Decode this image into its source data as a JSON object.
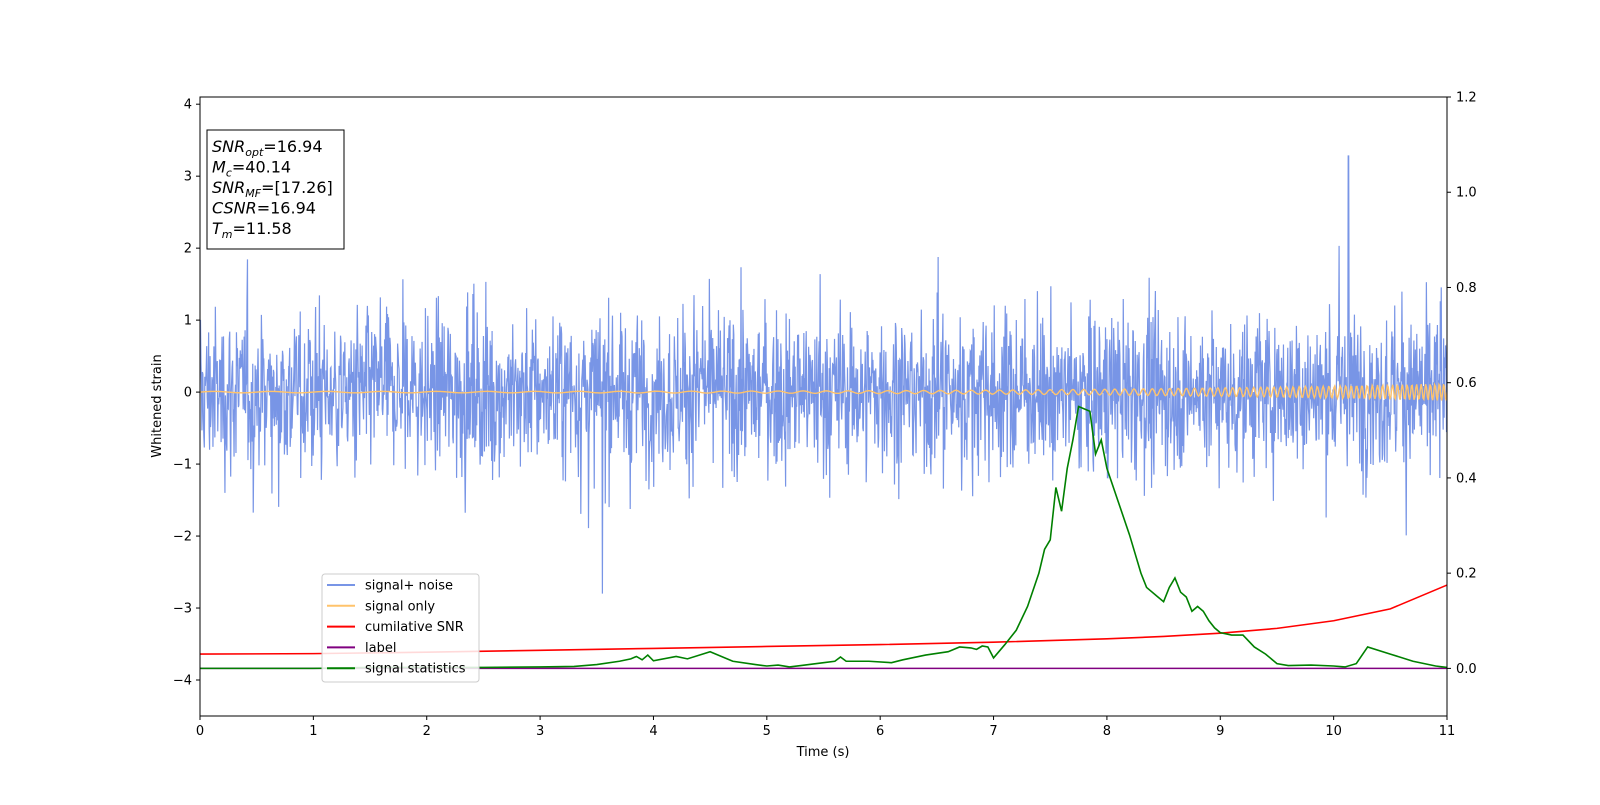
{
  "chart_data": {
    "type": "line",
    "xlabel": "Time (s)",
    "ylabel": "Whitened strain",
    "xlim": [
      0,
      11
    ],
    "ylim": [
      -4.5,
      4.1
    ],
    "y2lim": [
      -0.1,
      1.2
    ],
    "x_ticks": [
      0,
      1,
      2,
      3,
      4,
      5,
      6,
      7,
      8,
      9,
      10,
      11
    ],
    "x_tick_labels": [
      "0",
      "1",
      "2",
      "3",
      "4",
      "5",
      "6",
      "7",
      "8",
      "9",
      "10",
      "11"
    ],
    "y_ticks": [
      -4,
      -3,
      -2,
      -1,
      0,
      1,
      2,
      3,
      4
    ],
    "y_tick_labels": [
      "−4",
      "−3",
      "−2",
      "−1",
      "0",
      "1",
      "2",
      "3",
      "4"
    ],
    "y2_ticks": [
      0.0,
      0.2,
      0.4,
      0.6,
      0.8,
      1.0,
      1.2
    ],
    "y2_tick_labels": [
      "0.0",
      "0.2",
      "0.4",
      "0.6",
      "0.8",
      "1.0",
      "1.2"
    ],
    "grid": false,
    "legend_position": "lower-left",
    "info_box": [
      {
        "base": "SNR",
        "sub": "opt",
        "value": "=16.94"
      },
      {
        "base": "M",
        "sub": "c",
        "value": "=40.14"
      },
      {
        "base": "SNR",
        "sub": "MF",
        "value": "=[17.26]"
      },
      {
        "base": "CSNR",
        "sub": "",
        "value": "=16.94"
      },
      {
        "base": "T",
        "sub": "m",
        "value": "=11.58"
      }
    ],
    "series": [
      {
        "name": "signal+ noise",
        "color": "#7895e6",
        "axis": "left",
        "kind": "noise",
        "amplitude_std": 0.55,
        "typical_max": 2.0,
        "max_peak": [
          10.13,
          3.28
        ],
        "min_peak": [
          3.55,
          -2.8
        ]
      },
      {
        "name": "signal only",
        "color": "#ffc36b",
        "axis": "left",
        "kind": "chirp",
        "amplitude_start": 0.01,
        "amplitude_end": 0.12
      },
      {
        "name": "cumilative SNR",
        "color": "#ff0000",
        "axis": "right",
        "x": [
          0,
          1,
          2,
          3,
          4,
          5,
          6,
          7,
          8,
          8.5,
          9,
          9.5,
          10,
          10.5,
          11
        ],
        "values": [
          0.03,
          0.031,
          0.034,
          0.038,
          0.042,
          0.046,
          0.05,
          0.055,
          0.062,
          0.067,
          0.074,
          0.084,
          0.1,
          0.125,
          0.175
        ]
      },
      {
        "name": "label",
        "color": "#800080",
        "axis": "right",
        "x": [
          0,
          11
        ],
        "values": [
          0.0,
          0.0
        ]
      },
      {
        "name": "signal statistics",
        "color": "#008000",
        "axis": "right",
        "x": [
          0,
          0.5,
          1,
          1.5,
          2,
          2.5,
          3,
          3.3,
          3.5,
          3.7,
          3.8,
          3.85,
          3.9,
          3.95,
          4,
          4.2,
          4.3,
          4.5,
          4.7,
          4.9,
          5,
          5.1,
          5.2,
          5.3,
          5.5,
          5.6,
          5.65,
          5.7,
          5.9,
          6.1,
          6.2,
          6.4,
          6.6,
          6.7,
          6.8,
          6.85,
          6.9,
          6.95,
          7,
          7.1,
          7.2,
          7.3,
          7.4,
          7.45,
          7.5,
          7.55,
          7.6,
          7.65,
          7.7,
          7.75,
          7.85,
          7.9,
          7.95,
          8,
          8.1,
          8.2,
          8.3,
          8.35,
          8.45,
          8.5,
          8.55,
          8.6,
          8.65,
          8.7,
          8.75,
          8.8,
          8.85,
          8.9,
          8.95,
          9,
          9.1,
          9.2,
          9.3,
          9.4,
          9.5,
          9.6,
          9.8,
          10,
          10.1,
          10.2,
          10.3,
          10.5,
          10.7,
          10.9,
          11
        ],
        "values": [
          0.0,
          0.0,
          0.0,
          0.002,
          0.002,
          0.002,
          0.003,
          0.004,
          0.008,
          0.015,
          0.02,
          0.025,
          0.018,
          0.028,
          0.016,
          0.025,
          0.02,
          0.035,
          0.015,
          0.008,
          0.005,
          0.007,
          0.003,
          0.006,
          0.012,
          0.015,
          0.024,
          0.015,
          0.015,
          0.012,
          0.018,
          0.028,
          0.035,
          0.045,
          0.043,
          0.04,
          0.047,
          0.045,
          0.022,
          0.05,
          0.08,
          0.13,
          0.2,
          0.25,
          0.27,
          0.38,
          0.33,
          0.42,
          0.48,
          0.55,
          0.54,
          0.45,
          0.48,
          0.42,
          0.35,
          0.28,
          0.2,
          0.17,
          0.15,
          0.14,
          0.17,
          0.19,
          0.16,
          0.15,
          0.12,
          0.13,
          0.12,
          0.1,
          0.085,
          0.075,
          0.07,
          0.07,
          0.045,
          0.03,
          0.01,
          0.006,
          0.007,
          0.005,
          0.003,
          0.01,
          0.045,
          0.03,
          0.015,
          0.005,
          0.002
        ]
      }
    ]
  }
}
